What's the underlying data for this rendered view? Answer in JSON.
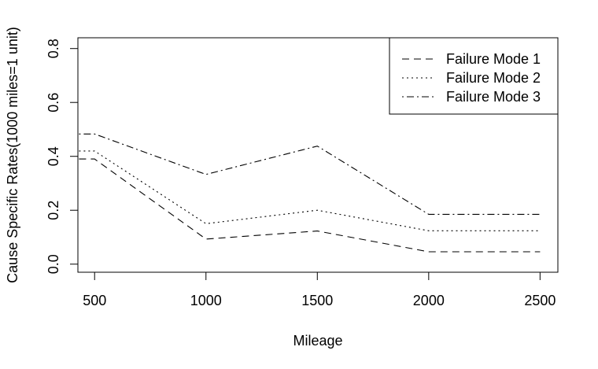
{
  "chart_data": {
    "type": "line",
    "title": "",
    "xlabel": "Mileage",
    "ylabel": "Cause Specific Rates(1000 miles=1 unit)",
    "x": [
      500,
      1000,
      1500,
      2000,
      2500
    ],
    "xticks": [
      500,
      1000,
      1500,
      2000,
      2500
    ],
    "yticks": [
      0.0,
      0.2,
      0.4,
      0.6,
      0.8
    ],
    "ytick_labels": [
      "0.0",
      "0.2",
      "0.4",
      "0.6",
      "0.8"
    ],
    "xlim": [
      425,
      2580
    ],
    "ylim": [
      -0.03,
      0.84
    ],
    "grid": false,
    "legend_position": "top-right",
    "series": [
      {
        "name": "Failure Mode 1",
        "dash": "dashed",
        "x": [
          430,
          500,
          1000,
          1500,
          2000,
          2500
        ],
        "values": [
          0.39,
          0.39,
          0.093,
          0.123,
          0.046,
          0.046
        ]
      },
      {
        "name": "Failure Mode 2",
        "dash": "dotted",
        "x": [
          430,
          500,
          1000,
          1500,
          2000,
          2500
        ],
        "values": [
          0.42,
          0.42,
          0.15,
          0.2,
          0.124,
          0.124
        ]
      },
      {
        "name": "Failure Mode 3",
        "dash": "dotdash",
        "x": [
          430,
          500,
          1000,
          1500,
          2000,
          2500
        ],
        "values": [
          0.483,
          0.483,
          0.333,
          0.438,
          0.185,
          0.185
        ]
      }
    ]
  }
}
